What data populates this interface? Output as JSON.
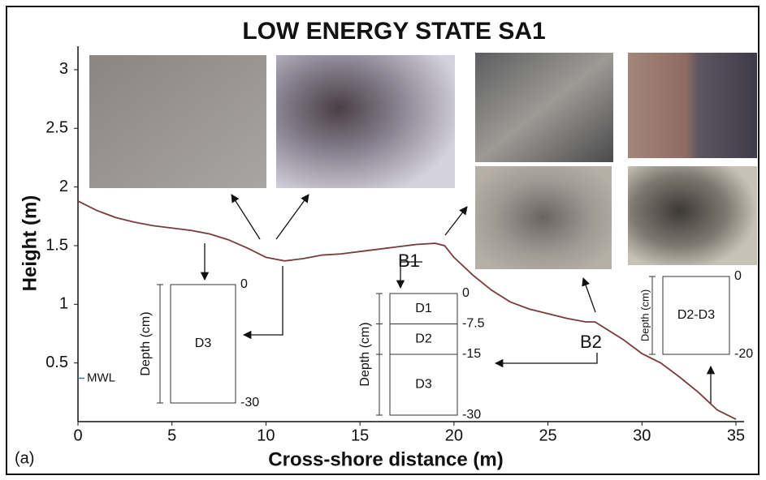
{
  "chart_data": {
    "type": "line",
    "title": "LOW ENERGY STATE SA1",
    "x_label": "Cross-shore distance (m)",
    "y_label": "Height (m)",
    "panel_label": "(a)",
    "xlim": [
      0,
      35
    ],
    "ylim": [
      0,
      3.2
    ],
    "xticks": [
      0,
      5,
      10,
      15,
      20,
      25,
      30,
      35
    ],
    "yticks": [
      0.5,
      1,
      1.5,
      2,
      2.5,
      3
    ],
    "x": [
      0,
      1,
      2,
      3,
      4,
      5,
      6,
      7,
      8,
      9,
      10,
      11,
      12,
      13,
      14,
      15,
      16,
      17,
      18,
      19,
      19.5,
      20,
      21,
      22,
      23,
      24,
      25,
      26,
      27,
      27.5,
      28,
      29,
      30,
      31,
      32,
      33,
      34,
      35
    ],
    "values": [
      1.88,
      1.8,
      1.74,
      1.7,
      1.67,
      1.65,
      1.63,
      1.6,
      1.55,
      1.48,
      1.4,
      1.37,
      1.39,
      1.42,
      1.43,
      1.45,
      1.47,
      1.49,
      1.51,
      1.52,
      1.5,
      1.4,
      1.25,
      1.12,
      1.02,
      0.96,
      0.92,
      0.88,
      0.85,
      0.85,
      0.8,
      0.7,
      0.58,
      0.5,
      0.38,
      0.25,
      0.1,
      0.02
    ],
    "color": "#7a3b3b",
    "mwl": {
      "label": "MWL",
      "value": 0.37
    },
    "site_labels": [
      "B1",
      "B2"
    ],
    "insets": [
      {
        "ylabel": "Depth (cm)",
        "ticks": [
          0,
          -30
        ],
        "layers": [
          "D3"
        ]
      },
      {
        "ylabel": "Depth (cm)",
        "ticks": [
          0,
          -7.5,
          -15,
          -30
        ],
        "layers": [
          "D1",
          "D2",
          "D3"
        ]
      },
      {
        "ylabel": "Depth (cm)",
        "ticks": [
          0,
          -20
        ],
        "layers": [
          "D2-D3"
        ]
      }
    ]
  }
}
